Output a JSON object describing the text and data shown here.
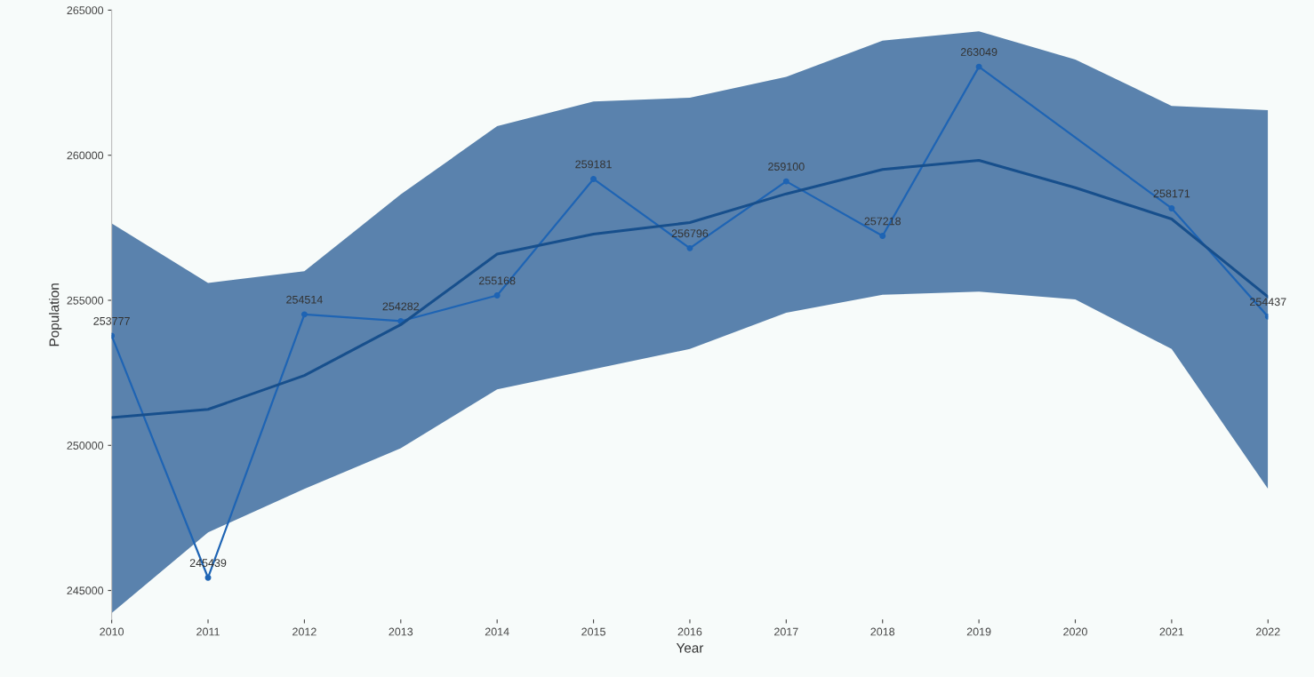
{
  "chart_data": {
    "type": "line",
    "xlabel": "Year",
    "ylabel": "Population",
    "x": [
      2010,
      2011,
      2012,
      2013,
      2014,
      2015,
      2016,
      2017,
      2018,
      2019,
      2020,
      2021,
      2022
    ],
    "xlim": [
      2010,
      2022
    ],
    "xticks": [
      2010,
      2011,
      2012,
      2013,
      2014,
      2015,
      2016,
      2017,
      2018,
      2019,
      2020,
      2021,
      2022
    ],
    "ylim": [
      244000,
      265000
    ],
    "yticks": [
      245000,
      250000,
      255000,
      260000,
      265000
    ],
    "grid": false,
    "legend": false,
    "series": [
      {
        "color": "#1e64b4",
        "marker": "circle",
        "data_labels": true,
        "x": [
          2010,
          2011,
          2012,
          2013,
          2014,
          2015,
          2016,
          2017,
          2018,
          2019,
          2021,
          2022
        ],
        "values": [
          253777,
          245439,
          254514,
          254282,
          255168,
          259181,
          256796,
          259100,
          257218,
          263049,
          258171,
          254437
        ]
      },
      {
        "color": "#174f8c",
        "marker": "none",
        "values": [
          250960,
          251240,
          252410,
          254160,
          256590,
          257280,
          257680,
          258670,
          259510,
          259820,
          258880,
          257800,
          255120
        ],
        "lower": [
          244220,
          247000,
          248500,
          249900,
          251930,
          252630,
          253320,
          254570,
          255190,
          255300,
          255030,
          253320,
          248500
        ],
        "upper": [
          257650,
          255600,
          256000,
          258650,
          261000,
          261850,
          261980,
          262700,
          263950,
          264270,
          263300,
          261700,
          261550
        ]
      }
    ]
  }
}
